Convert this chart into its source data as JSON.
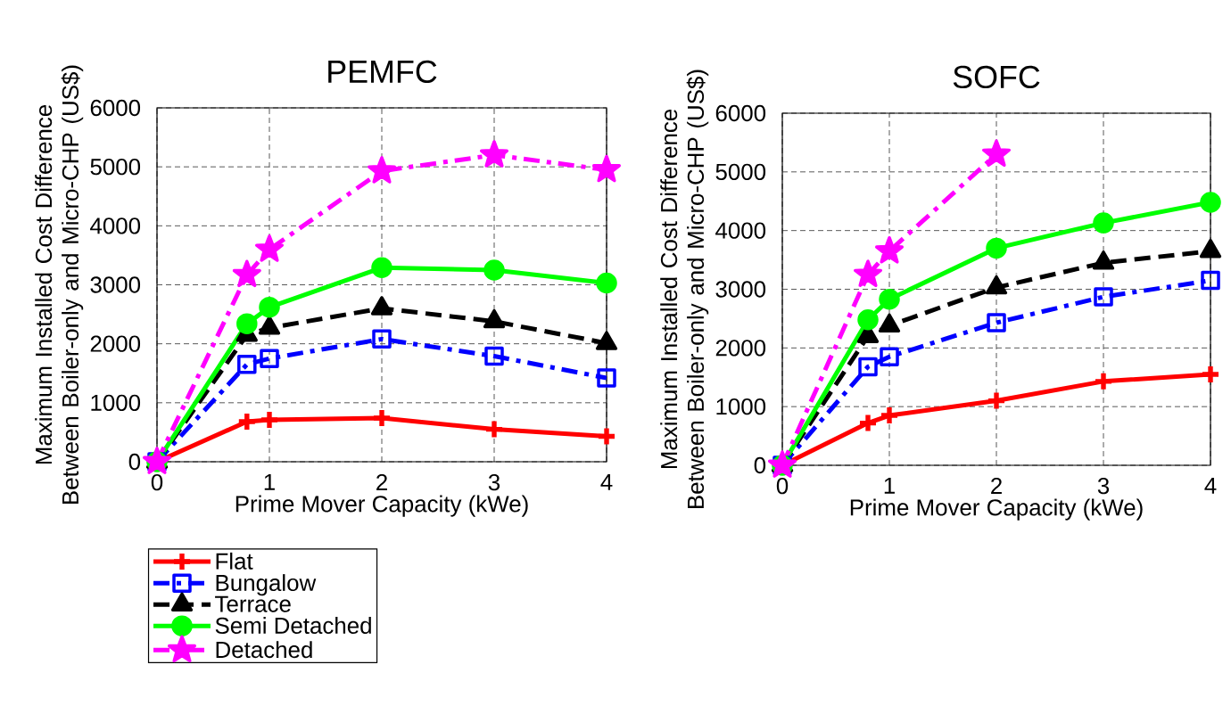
{
  "chart_data": [
    {
      "type": "line",
      "title": "PEMFC",
      "xlabel": "Prime Mover Capacity (kWe)",
      "ylabel": "Maximum Installed Cost Difference Between Boiler-only and Micro-CHP (US$)",
      "x": [
        0,
        0.8,
        1,
        2,
        3,
        4
      ],
      "xlim": [
        0,
        4
      ],
      "xticks": [
        0,
        1,
        2,
        3,
        4
      ],
      "ylim": [
        0,
        6000
      ],
      "yticks": [
        0,
        1000,
        2000,
        3000,
        4000,
        5000,
        6000
      ],
      "grid": true,
      "legend": "bottom left",
      "series": [
        {
          "name": "Flat",
          "color": "#ff0000",
          "marker": "cross",
          "line_style": "solid",
          "values": [
            0,
            680,
            710,
            740,
            550,
            430
          ]
        },
        {
          "name": "Bungalow",
          "color": "#0000ff",
          "marker": "square",
          "line_style": "dashdot",
          "values": [
            0,
            1650,
            1750,
            2080,
            1790,
            1420
          ]
        },
        {
          "name": "Terrace",
          "color": "#000000",
          "marker": "triangle",
          "line_style": "dashed",
          "values": [
            0,
            2150,
            2270,
            2600,
            2380,
            2010
          ]
        },
        {
          "name": "Semi Detached",
          "color": "#00ff00",
          "marker": "circle",
          "line_style": "solid",
          "values": [
            0,
            2340,
            2620,
            3290,
            3250,
            3030
          ]
        },
        {
          "name": "Detached",
          "color": "#ff00ff",
          "marker": "star",
          "line_style": "dashdot",
          "values": [
            0,
            3170,
            3600,
            4930,
            5200,
            4950
          ]
        }
      ]
    },
    {
      "type": "line",
      "title": "SOFC",
      "xlabel": "Prime Mover Capacity (kWe)",
      "ylabel": "Maximum Installed Cost Difference Between Boiler-only and Micro-CHP (US$)",
      "x": [
        0,
        0.8,
        1,
        2,
        3,
        4
      ],
      "xlim": [
        0,
        4
      ],
      "xticks": [
        0,
        1,
        2,
        3,
        4
      ],
      "ylim": [
        0,
        6000
      ],
      "yticks": [
        0,
        1000,
        2000,
        3000,
        4000,
        5000,
        6000
      ],
      "grid": true,
      "series": [
        {
          "color": "#ff0000",
          "marker": "cross",
          "line_style": "solid",
          "values": [
            0,
            720,
            850,
            1100,
            1430,
            1550
          ]
        },
        {
          "color": "#0000ff",
          "marker": "square",
          "line_style": "dashdot",
          "values": [
            0,
            1680,
            1850,
            2430,
            2870,
            3150
          ]
        },
        {
          "color": "#000000",
          "marker": "triangle",
          "line_style": "dashed",
          "values": [
            0,
            2200,
            2380,
            3030,
            3450,
            3650
          ]
        },
        {
          "color": "#00ff00",
          "marker": "circle",
          "line_style": "solid",
          "values": [
            0,
            2480,
            2830,
            3700,
            4130,
            4480
          ]
        },
        {
          "color": "#ff00ff",
          "marker": "star",
          "line_style": "dashdot",
          "values": [
            0,
            3250,
            3650,
            5300,
            null,
            null
          ]
        }
      ]
    }
  ]
}
